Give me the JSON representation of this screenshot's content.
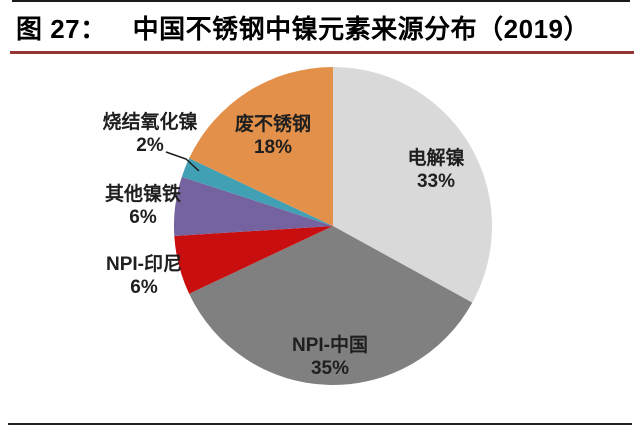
{
  "header": {
    "title_prefix": "图 27：",
    "title_text": "中国不锈钢中镍元素来源分布（2019）"
  },
  "chart_data": {
    "type": "pie",
    "title": "中国不锈钢中镍元素来源分布（2019）",
    "unit": "%",
    "start_angle_deg": 0,
    "direction": "clockwise",
    "legend_position": "none",
    "slices": [
      {
        "id": "electrolytic-nickel",
        "label": "电解镍",
        "value": 33,
        "pct_label": "33%",
        "color": "#d9d9d9",
        "label_placement": "inside"
      },
      {
        "id": "npi-china",
        "label": "NPI-中国",
        "value": 35,
        "pct_label": "35%",
        "color": "#808080",
        "label_placement": "inside"
      },
      {
        "id": "npi-indonesia",
        "label": "NPI-印尼",
        "value": 6,
        "pct_label": "6%",
        "color": "#c80e0e",
        "label_placement": "outside-left"
      },
      {
        "id": "other-ferronickel",
        "label": "其他镍铁",
        "value": 6,
        "pct_label": "6%",
        "color": "#74639f",
        "label_placement": "outside-left"
      },
      {
        "id": "sintered-nickel-oxide",
        "label": "烧结氧化镍",
        "value": 2,
        "pct_label": "2%",
        "color": "#42a0b5",
        "label_placement": "outside-left-with-leader"
      },
      {
        "id": "scrap-stainless-steel",
        "label": "废不锈钢",
        "value": 18,
        "pct_label": "18%",
        "color": "#e2904a",
        "label_placement": "inside"
      }
    ]
  },
  "decor": {
    "top_rule_color": "#1a1a1a",
    "title_underline_color": "#943634",
    "bottom_rule_color": "#232323",
    "label_text_color": "#1f1f1f"
  }
}
